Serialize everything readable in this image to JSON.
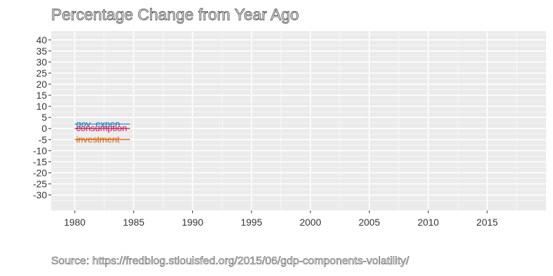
{
  "chart_data": {
    "type": "line",
    "title": "Percentage Change from Year Ago",
    "caption": "Source: https://fredblog.stlouisfed.org/2015/06/gdp-components-volatility/",
    "xlabel": "",
    "ylabel": "",
    "xlim": [
      1978,
      2020
    ],
    "ylim": [
      -37,
      44
    ],
    "x_ticks": [
      1980,
      1985,
      1990,
      1995,
      2000,
      2005,
      2010,
      2015
    ],
    "y_ticks": [
      -30,
      -25,
      -20,
      -15,
      -10,
      -5,
      0,
      5,
      10,
      15,
      20,
      25,
      30,
      35,
      40
    ],
    "grid": true,
    "series": [
      {
        "name": "gov_expen",
        "color": "#1f77b4",
        "x": [
          1980
        ],
        "values": [
          2
        ]
      },
      {
        "name": "consumption",
        "color": "#c2185b",
        "x": [
          1980
        ],
        "values": [
          0
        ]
      },
      {
        "name": "investment",
        "color": "#d95f02",
        "x": [
          1980
        ],
        "values": [
          -5
        ]
      }
    ]
  }
}
